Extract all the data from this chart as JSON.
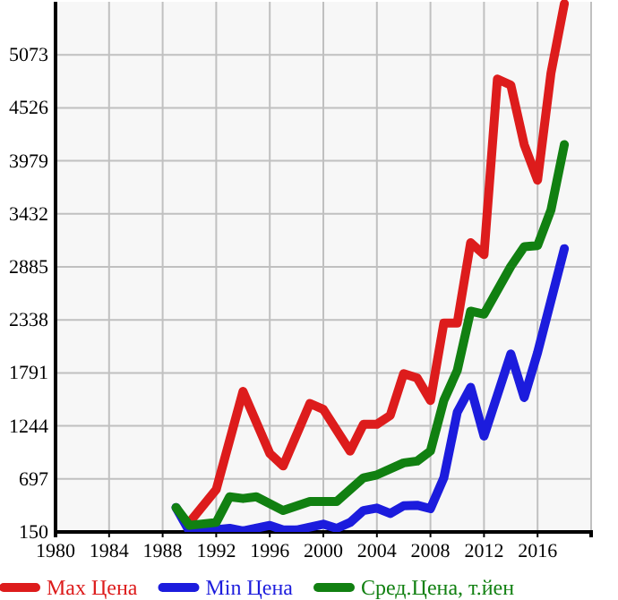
{
  "chart_data": {
    "type": "line",
    "xlim": [
      1980,
      2020
    ],
    "xticks": [
      1980,
      1984,
      1988,
      1992,
      1996,
      2000,
      2004,
      2008,
      2012,
      2016
    ],
    "ylim": [
      150,
      5620
    ],
    "yticks": [
      150,
      697,
      1244,
      1791,
      2338,
      2885,
      3432,
      3979,
      4526,
      5073
    ],
    "grid": true,
    "legend": "bottom",
    "marker": "none",
    "line_style": "solid",
    "series": [
      {
        "name": "Max Цена",
        "color": "#dd1c1c",
        "x": [
          1990,
          1992,
          1994,
          1996,
          1997,
          1999,
          2000,
          2002,
          2003,
          2004,
          2005,
          2006,
          2007,
          2008,
          2009,
          2010,
          2011,
          2012,
          2013,
          2014,
          2015,
          2016,
          2017,
          2018
        ],
        "values": [
          248,
          587,
          1600,
          960,
          831,
          1476,
          1415,
          984,
          1261,
          1261,
          1353,
          1784,
          1740,
          1507,
          2305,
          2305,
          3134,
          3011,
          4823,
          4761,
          4147,
          3779,
          4884,
          5600
        ]
      },
      {
        "name": "Min Цена",
        "color": "#1c1cdd",
        "x": [
          1989,
          1990,
          1991,
          1993,
          1994,
          1996,
          1997,
          1998,
          2000,
          2001,
          2002,
          2003,
          2004,
          2005,
          2006,
          2007,
          2008,
          2009,
          2010,
          2011,
          2012,
          2014,
          2015,
          2016,
          2018
        ],
        "values": [
          402,
          155,
          160,
          187,
          160,
          218,
          170,
          170,
          230,
          187,
          248,
          371,
          396,
          340,
          420,
          426,
          390,
          708,
          1384,
          1642,
          1139,
          1986,
          1537,
          2000,
          3073
        ]
      },
      {
        "name": "Сред.Цена, т.йен",
        "color": "#118011",
        "x": [
          1989,
          1990,
          1992,
          1993,
          1994,
          1995,
          1997,
          1999,
          2001,
          2003,
          2004,
          2006,
          2007,
          2008,
          2009,
          2010,
          2011,
          2012,
          2014,
          2015,
          2016,
          2017,
          2018
        ],
        "values": [
          402,
          218,
          248,
          513,
          495,
          513,
          371,
          464,
          464,
          708,
          739,
          863,
          881,
          985,
          1507,
          1815,
          2428,
          2397,
          2890,
          3092,
          3104,
          3471,
          4147
        ]
      }
    ]
  }
}
